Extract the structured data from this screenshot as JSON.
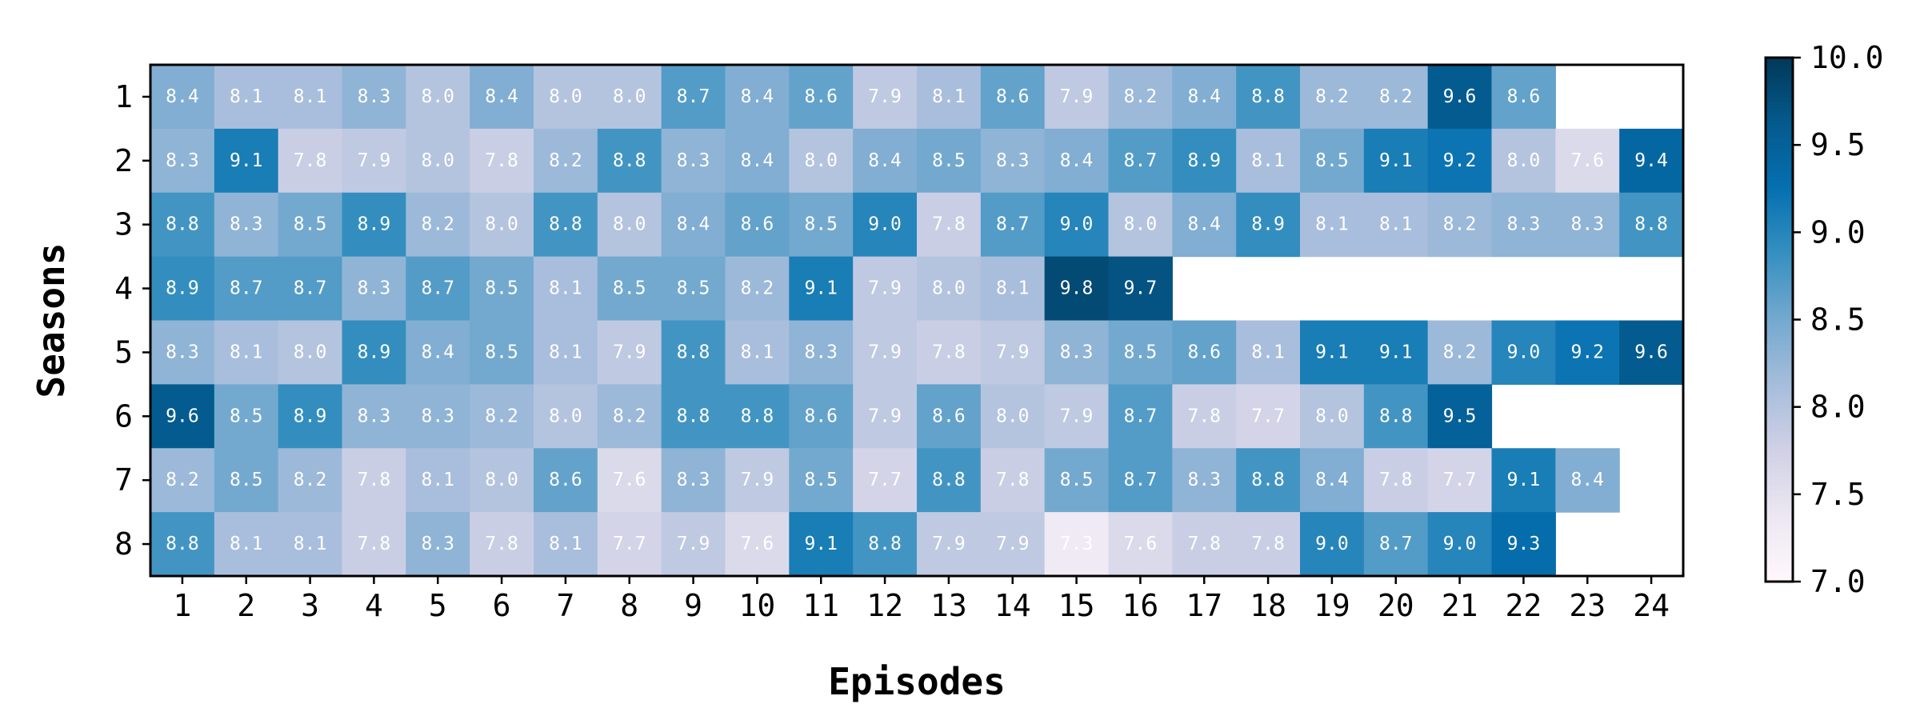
{
  "chart_data": {
    "type": "heatmap",
    "title": "",
    "xlabel": "Episodes",
    "ylabel": "Seasons",
    "x_categories": [
      "1",
      "2",
      "3",
      "4",
      "5",
      "6",
      "7",
      "8",
      "9",
      "10",
      "11",
      "12",
      "13",
      "14",
      "15",
      "16",
      "17",
      "18",
      "19",
      "20",
      "21",
      "22",
      "23",
      "24"
    ],
    "y_categories": [
      "1",
      "2",
      "3",
      "4",
      "5",
      "6",
      "7",
      "8"
    ],
    "values": [
      [
        8.4,
        8.1,
        8.1,
        8.3,
        8.0,
        8.4,
        8.0,
        8.0,
        8.7,
        8.4,
        8.6,
        7.9,
        8.1,
        8.6,
        7.9,
        8.2,
        8.4,
        8.8,
        8.2,
        8.2,
        9.6,
        8.6,
        null,
        null
      ],
      [
        8.3,
        9.1,
        7.8,
        7.9,
        8.0,
        7.8,
        8.2,
        8.8,
        8.3,
        8.4,
        8.0,
        8.4,
        8.5,
        8.3,
        8.4,
        8.7,
        8.9,
        8.1,
        8.5,
        9.1,
        9.2,
        8.0,
        7.6,
        9.4
      ],
      [
        8.8,
        8.3,
        8.5,
        8.9,
        8.2,
        8.0,
        8.8,
        8.0,
        8.4,
        8.6,
        8.5,
        9.0,
        7.8,
        8.7,
        9.0,
        8.0,
        8.4,
        8.9,
        8.1,
        8.1,
        8.2,
        8.3,
        8.3,
        8.8
      ],
      [
        8.9,
        8.7,
        8.7,
        8.3,
        8.7,
        8.5,
        8.1,
        8.5,
        8.5,
        8.2,
        9.1,
        7.9,
        8.0,
        8.1,
        9.8,
        9.7,
        null,
        null,
        null,
        null,
        null,
        null,
        null,
        null
      ],
      [
        8.3,
        8.1,
        8.0,
        8.9,
        8.4,
        8.5,
        8.1,
        7.9,
        8.8,
        8.1,
        8.3,
        7.9,
        7.8,
        7.9,
        8.3,
        8.5,
        8.6,
        8.1,
        9.1,
        9.1,
        8.2,
        9.0,
        9.2,
        9.6
      ],
      [
        9.6,
        8.5,
        8.9,
        8.3,
        8.3,
        8.2,
        8.0,
        8.2,
        8.8,
        8.8,
        8.6,
        7.9,
        8.6,
        8.0,
        7.9,
        8.7,
        7.8,
        7.7,
        8.0,
        8.8,
        9.5,
        null,
        null,
        null
      ],
      [
        8.2,
        8.5,
        8.2,
        7.8,
        8.1,
        8.0,
        8.6,
        7.6,
        8.3,
        7.9,
        8.5,
        7.7,
        8.8,
        7.8,
        8.5,
        8.7,
        8.3,
        8.8,
        8.4,
        7.8,
        7.7,
        9.1,
        8.4,
        null
      ],
      [
        8.8,
        8.1,
        8.1,
        7.8,
        8.3,
        7.8,
        8.1,
        7.7,
        7.9,
        7.6,
        9.1,
        8.8,
        7.9,
        7.9,
        7.3,
        7.6,
        7.8,
        7.8,
        9.0,
        8.7,
        9.0,
        9.3,
        null,
        null
      ]
    ],
    "value_format": "1 decimal",
    "colorbar": {
      "min": 7.0,
      "max": 10.0,
      "ticks": [
        "7.0",
        "7.5",
        "8.0",
        "8.5",
        "9.0",
        "9.5",
        "10.0"
      ],
      "colormap": "PuBu",
      "colors": [
        "#fff7fb",
        "#ece7f2",
        "#d0d1e6",
        "#a6bddb",
        "#74a9cf",
        "#3690c0",
        "#0570b0",
        "#045a8d",
        "#023858"
      ]
    },
    "grid": false,
    "legend": "colorbar-right"
  }
}
